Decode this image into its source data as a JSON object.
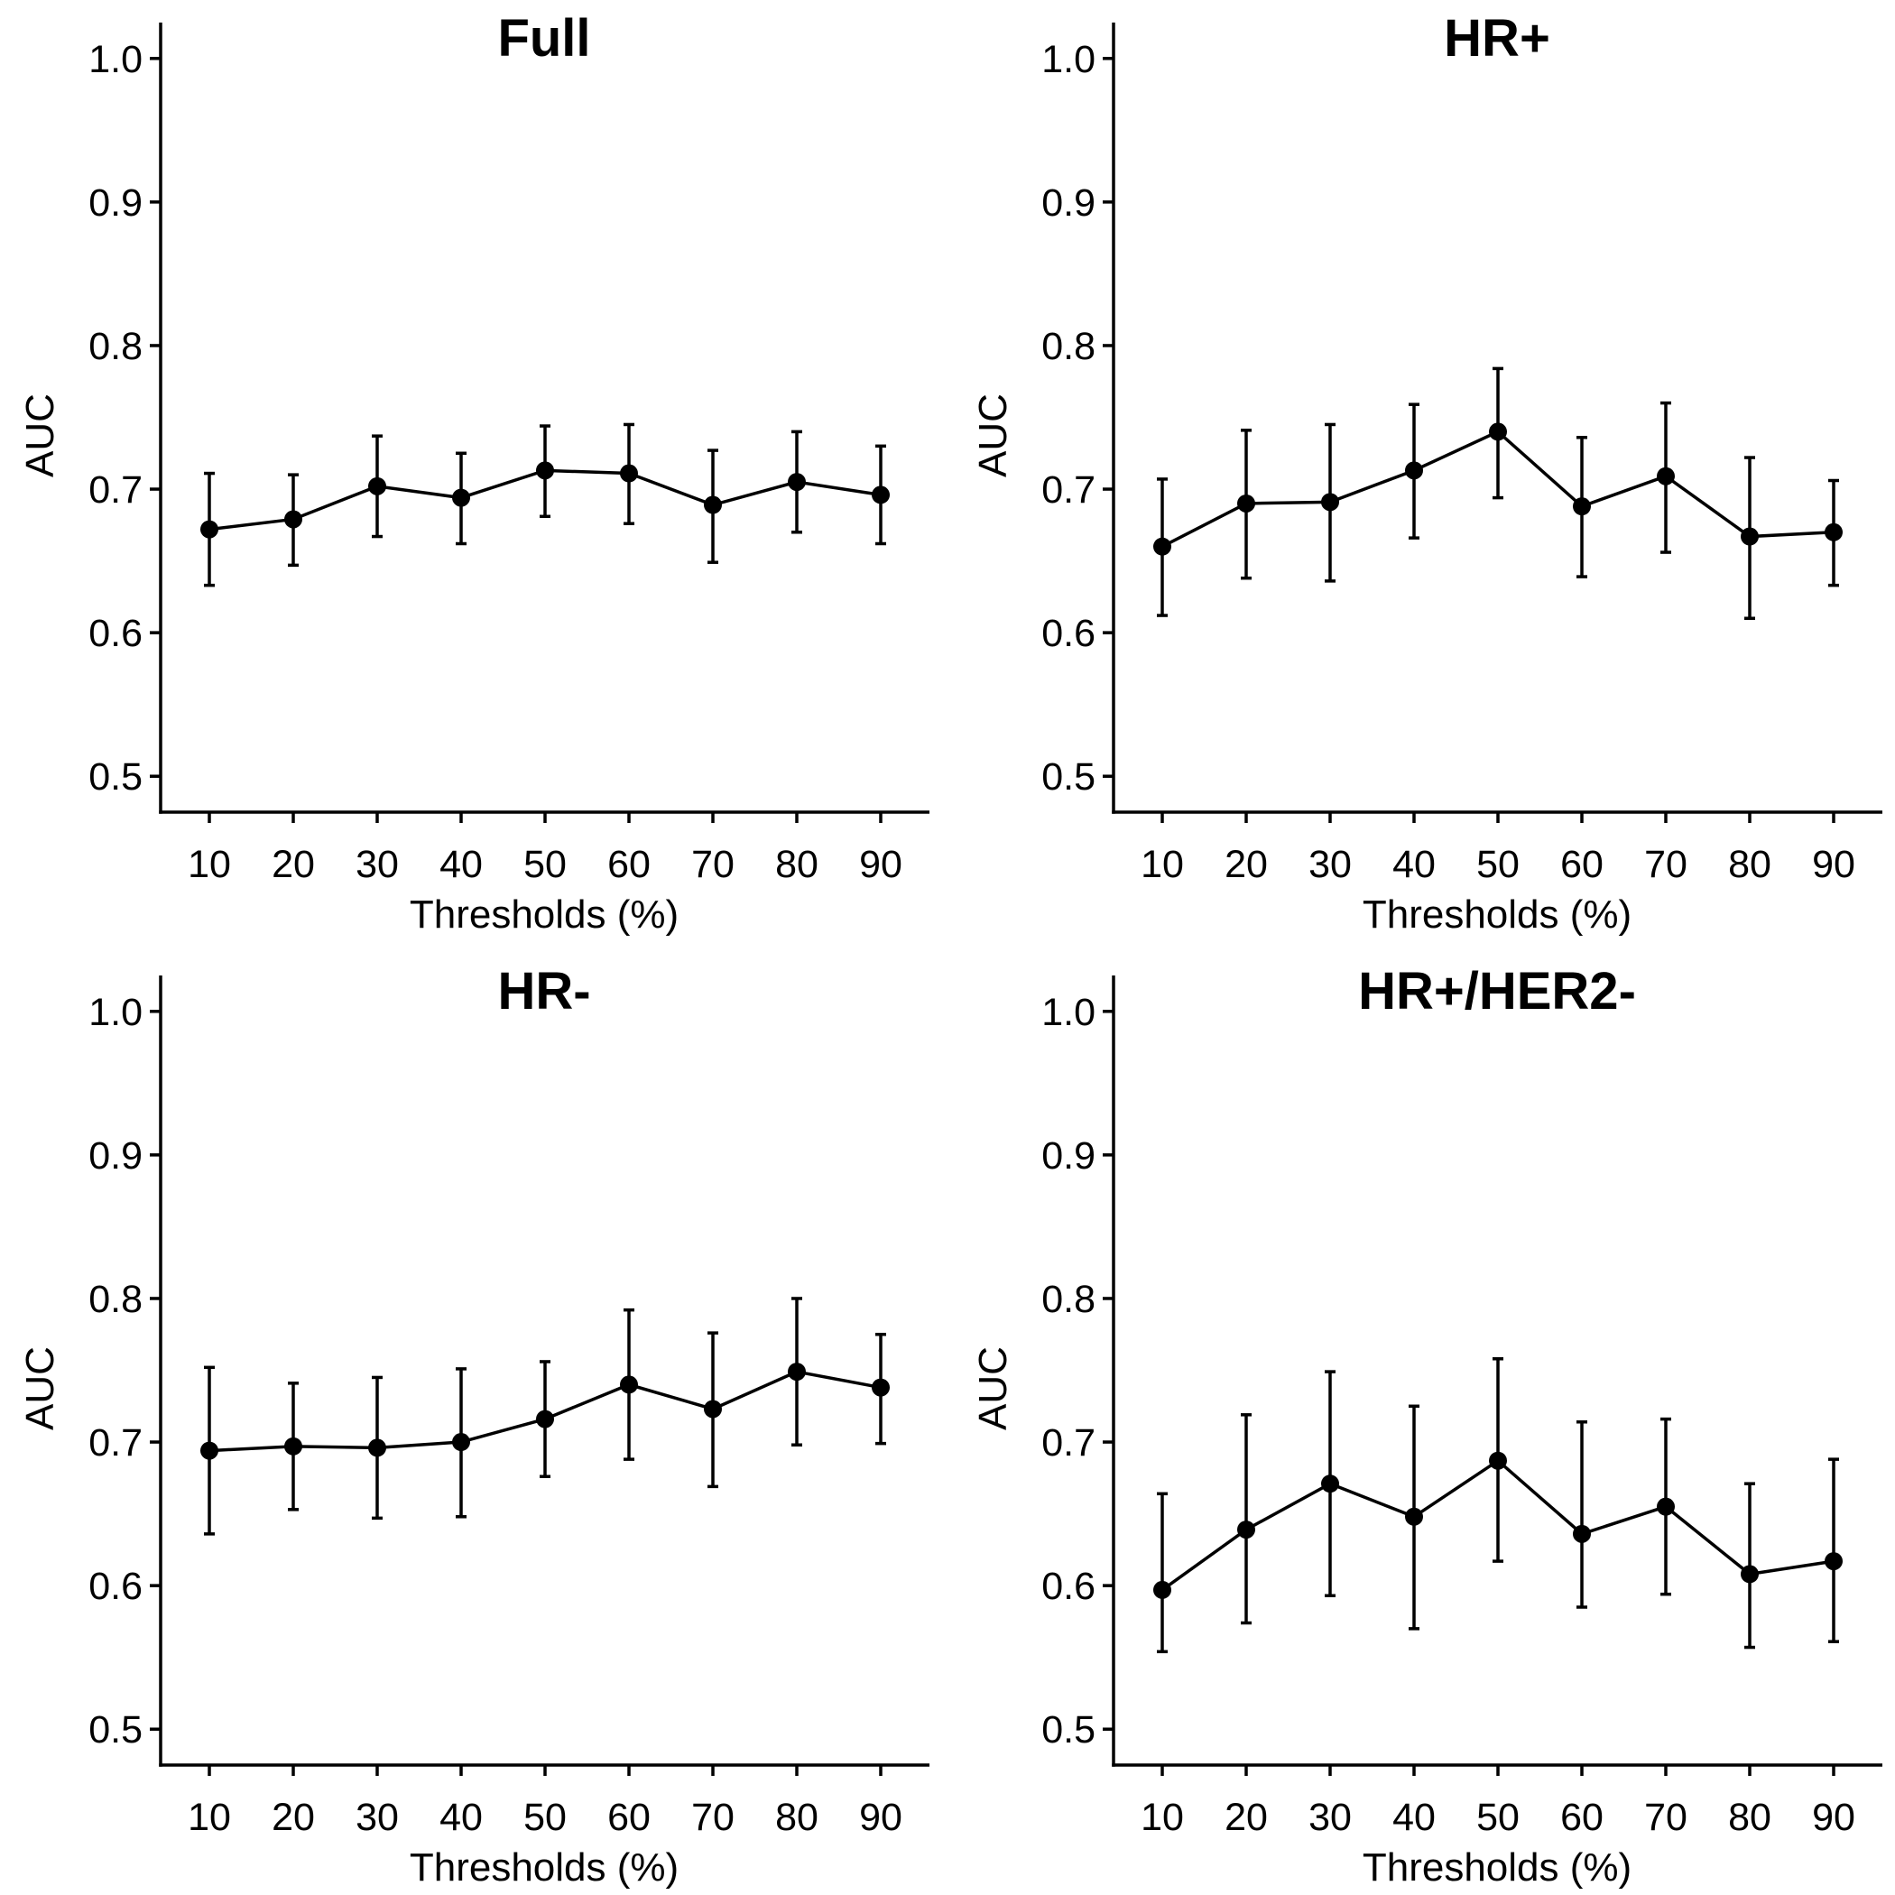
{
  "chart_data": [
    {
      "type": "line",
      "title": "Full",
      "xlabel": "Thresholds (%)",
      "ylabel": "AUC",
      "x": [
        10,
        20,
        30,
        40,
        50,
        60,
        70,
        80,
        90
      ],
      "ylim": [
        0.475,
        1.025
      ],
      "yticks": [
        0.5,
        0.6,
        0.7,
        0.8,
        0.9,
        1.0
      ],
      "ytick_labels": [
        "0.5",
        "0.6",
        "0.7",
        "0.8",
        "0.9",
        "1.0"
      ],
      "xtick_labels": [
        "10",
        "20",
        "30",
        "40",
        "50",
        "60",
        "70",
        "80",
        "90"
      ],
      "values": [
        0.672,
        0.679,
        0.702,
        0.694,
        0.713,
        0.711,
        0.689,
        0.705,
        0.696
      ],
      "lower": [
        0.633,
        0.647,
        0.667,
        0.662,
        0.681,
        0.676,
        0.649,
        0.67,
        0.662
      ],
      "upper": [
        0.711,
        0.71,
        0.737,
        0.725,
        0.744,
        0.745,
        0.727,
        0.74,
        0.73
      ]
    },
    {
      "type": "line",
      "title": "HR+",
      "xlabel": "Thresholds (%)",
      "ylabel": "AUC",
      "x": [
        10,
        20,
        30,
        40,
        50,
        60,
        70,
        80,
        90
      ],
      "ylim": [
        0.475,
        1.025
      ],
      "yticks": [
        0.5,
        0.6,
        0.7,
        0.8,
        0.9,
        1.0
      ],
      "ytick_labels": [
        "0.5",
        "0.6",
        "0.7",
        "0.8",
        "0.9",
        "1.0"
      ],
      "xtick_labels": [
        "10",
        "20",
        "30",
        "40",
        "50",
        "60",
        "70",
        "80",
        "90"
      ],
      "values": [
        0.66,
        0.69,
        0.691,
        0.713,
        0.74,
        0.688,
        0.709,
        0.667,
        0.67
      ],
      "lower": [
        0.612,
        0.638,
        0.636,
        0.666,
        0.694,
        0.639,
        0.656,
        0.61,
        0.633
      ],
      "upper": [
        0.707,
        0.741,
        0.745,
        0.759,
        0.784,
        0.736,
        0.76,
        0.722,
        0.706
      ]
    },
    {
      "type": "line",
      "title": "HR-",
      "xlabel": "Thresholds (%)",
      "ylabel": "AUC",
      "x": [
        10,
        20,
        30,
        40,
        50,
        60,
        70,
        80,
        90
      ],
      "ylim": [
        0.475,
        1.025
      ],
      "yticks": [
        0.5,
        0.6,
        0.7,
        0.8,
        0.9,
        1.0
      ],
      "ytick_labels": [
        "0.5",
        "0.6",
        "0.7",
        "0.8",
        "0.9",
        "1.0"
      ],
      "xtick_labels": [
        "10",
        "20",
        "30",
        "40",
        "50",
        "60",
        "70",
        "80",
        "90"
      ],
      "values": [
        0.694,
        0.697,
        0.696,
        0.7,
        0.716,
        0.74,
        0.723,
        0.749,
        0.738
      ],
      "lower": [
        0.636,
        0.653,
        0.647,
        0.648,
        0.676,
        0.688,
        0.669,
        0.698,
        0.699
      ],
      "upper": [
        0.752,
        0.741,
        0.745,
        0.751,
        0.756,
        0.792,
        0.776,
        0.8,
        0.775
      ]
    },
    {
      "type": "line",
      "title": "HR+/HER2-",
      "xlabel": "Thresholds (%)",
      "ylabel": "AUC",
      "x": [
        10,
        20,
        30,
        40,
        50,
        60,
        70,
        80,
        90
      ],
      "ylim": [
        0.475,
        1.025
      ],
      "yticks": [
        0.5,
        0.6,
        0.7,
        0.8,
        0.9,
        1.0
      ],
      "ytick_labels": [
        "0.5",
        "0.6",
        "0.7",
        "0.8",
        "0.9",
        "1.0"
      ],
      "xtick_labels": [
        "10",
        "20",
        "30",
        "40",
        "50",
        "60",
        "70",
        "80",
        "90"
      ],
      "values": [
        0.597,
        0.639,
        0.671,
        0.648,
        0.687,
        0.636,
        0.655,
        0.608,
        0.617
      ],
      "lower": [
        0.554,
        0.574,
        0.593,
        0.57,
        0.617,
        0.585,
        0.594,
        0.557,
        0.561
      ],
      "upper": [
        0.664,
        0.719,
        0.749,
        0.725,
        0.758,
        0.714,
        0.716,
        0.671,
        0.688
      ]
    }
  ]
}
